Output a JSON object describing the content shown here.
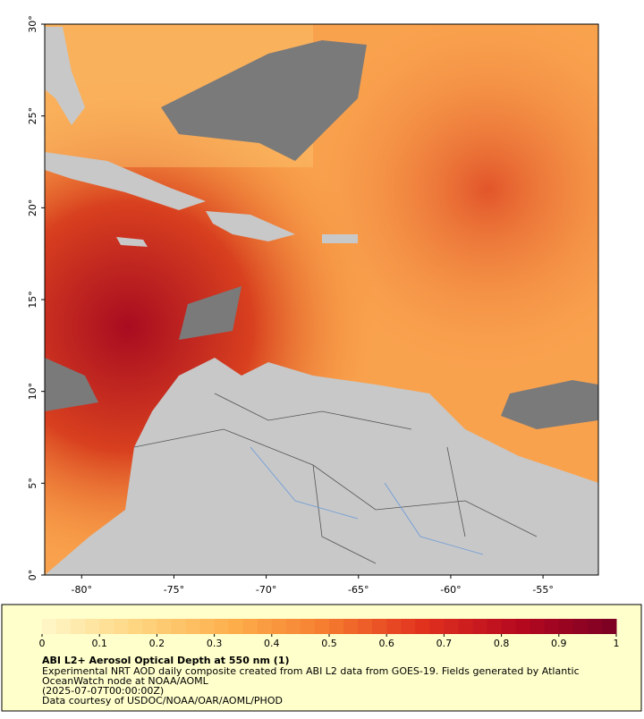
{
  "map": {
    "lonlim": [
      -82,
      -52
    ],
    "latlim": [
      0,
      30
    ],
    "lonticks": [
      {
        "value": -80,
        "label": "-80°"
      },
      {
        "value": -75,
        "label": "-75°"
      },
      {
        "value": -70,
        "label": "-70°"
      },
      {
        "value": -65,
        "label": "-65°"
      },
      {
        "value": -60,
        "label": "-60°"
      },
      {
        "value": -55,
        "label": "-55°"
      }
    ],
    "latticks": [
      {
        "value": 0,
        "label": "0°"
      },
      {
        "value": 5,
        "label": "5°"
      },
      {
        "value": 10,
        "label": "10°"
      },
      {
        "value": 15,
        "label": "15°"
      },
      {
        "value": 20,
        "label": "20°"
      },
      {
        "value": 25,
        "label": "25°"
      },
      {
        "value": 30,
        "label": "30°"
      }
    ]
  },
  "colorbar": {
    "lim": [
      0,
      1
    ],
    "ticks": [
      0,
      0.1,
      0.2,
      0.3,
      0.4,
      0.5,
      0.6,
      0.7,
      0.8,
      0.9,
      1
    ],
    "colors": [
      "#fff7c8",
      "#fed580",
      "#fdae4b",
      "#f57a2e",
      "#e0301e",
      "#b5081f",
      "#7a0024"
    ]
  },
  "caption": {
    "title": "ABI L2+ Aerosol Optical Depth at 550 nm (1)",
    "lines": [
      "Experimental NRT AOD daily composite created from ABI L2 data from GOES-19. Fields generated by Atlantic",
      "OceanWatch node at NOAA/AOML",
      "(2025-07-07T00:00:00Z)",
      "Data courtesy of USDOC/NOAA/OAR/AOML/PHOD"
    ]
  }
}
